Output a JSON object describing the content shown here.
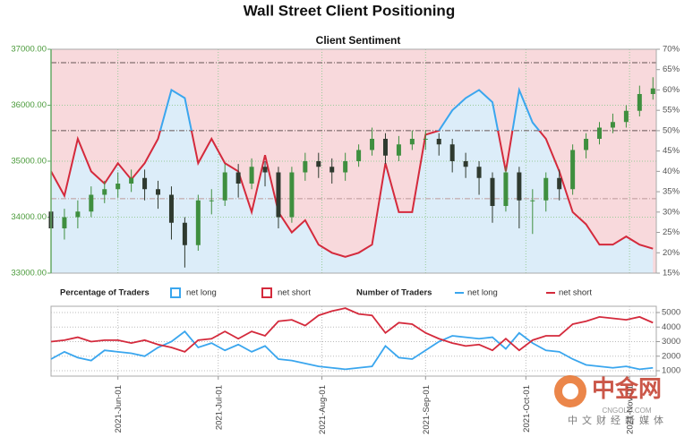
{
  "chart_data": [
    {
      "type": "candlestick",
      "title": "Wall Street Client Positioning",
      "subtitle": "Client Sentiment",
      "x": [
        "2021-May-12",
        "2021-May-16",
        "2021-May-20",
        "2021-May-24",
        "2021-May-28",
        "2021-Jun-01",
        "2021-Jun-05",
        "2021-Jun-09",
        "2021-Jun-13",
        "2021-Jun-17",
        "2021-Jun-21",
        "2021-Jun-25",
        "2021-Jun-29",
        "2021-Jul-03",
        "2021-Jul-07",
        "2021-Jul-11",
        "2021-Jul-15",
        "2021-Jul-19",
        "2021-Jul-23",
        "2021-Jul-27",
        "2021-Jul-31",
        "2021-Aug-04",
        "2021-Aug-08",
        "2021-Aug-12",
        "2021-Aug-16",
        "2021-Aug-20",
        "2021-Aug-24",
        "2021-Aug-28",
        "2021-Sep-01",
        "2021-Sep-05",
        "2021-Sep-09",
        "2021-Sep-13",
        "2021-Sep-17",
        "2021-Sep-21",
        "2021-Sep-25",
        "2021-Sep-29",
        "2021-Oct-03",
        "2021-Oct-07",
        "2021-Oct-11",
        "2021-Oct-15",
        "2021-Oct-19",
        "2021-Oct-23",
        "2021-Oct-27",
        "2021-Oct-31",
        "2021-Nov-04",
        "2021-Nov-08"
      ],
      "xlim": [
        "2021-May-12",
        "2021-Nov-09"
      ],
      "open": [
        34100,
        33800,
        34000,
        34100,
        34400,
        34500,
        34600,
        34700,
        34500,
        34400,
        33900,
        33500,
        34300,
        34300,
        34800,
        34600,
        34900,
        34800,
        34000,
        34800,
        35000,
        34900,
        34800,
        35000,
        35200,
        35400,
        35100,
        35300,
        35400,
        35400,
        35300,
        35000,
        34900,
        34700,
        34200,
        34800,
        34300,
        34300,
        34700,
        34500,
        35200,
        35400,
        35600,
        35700,
        35900,
        36200
      ],
      "high": [
        34250,
        34150,
        34300,
        34550,
        34650,
        34800,
        34850,
        34850,
        34650,
        34550,
        34000,
        34400,
        34500,
        34950,
        34950,
        35050,
        35000,
        34900,
        34900,
        35150,
        35150,
        35050,
        35150,
        35300,
        35600,
        35500,
        35450,
        35550,
        35550,
        35500,
        35400,
        35150,
        35000,
        34800,
        34900,
        34900,
        34500,
        34800,
        34850,
        35300,
        35500,
        35700,
        35850,
        36000,
        36350,
        36500
      ],
      "low": [
        33300,
        33600,
        33800,
        34000,
        34250,
        34350,
        34450,
        34300,
        34150,
        33600,
        33100,
        33400,
        34050,
        34200,
        34350,
        34500,
        34550,
        33800,
        33900,
        34650,
        34700,
        34600,
        34650,
        34900,
        35100,
        34950,
        35000,
        35200,
        35200,
        35100,
        34800,
        34700,
        34400,
        33900,
        34100,
        33800,
        33700,
        34100,
        34300,
        34400,
        35050,
        35300,
        35500,
        35600,
        35800,
        36100
      ],
      "close": [
        33800,
        34000,
        34100,
        34400,
        34500,
        34600,
        34700,
        34500,
        34400,
        33900,
        33500,
        34300,
        34300,
        34800,
        34600,
        34900,
        34800,
        34000,
        34800,
        35000,
        34900,
        34800,
        35000,
        35200,
        35400,
        35100,
        35300,
        35400,
        35400,
        35300,
        35000,
        34900,
        34700,
        34200,
        34800,
        34300,
        34300,
        34700,
        34500,
        35200,
        35400,
        35600,
        35700,
        35900,
        36200,
        36300
      ],
      "up_color": "#3f8f3f",
      "down_color": "#2f3a2f",
      "ylim": [
        33000,
        37000
      ],
      "yticks": [
        {
          "value": 33000,
          "label": "33000.00"
        },
        {
          "value": 34000,
          "label": "34000.00"
        },
        {
          "value": 35000,
          "label": "35000.00"
        },
        {
          "value": 36000,
          "label": "36000.00"
        },
        {
          "value": 37000,
          "label": "37000.00"
        }
      ],
      "y2lim": [
        15,
        70
      ],
      "y2ticks": [
        {
          "value": 15,
          "label": "15%"
        },
        {
          "value": 20,
          "label": "20%"
        },
        {
          "value": 25,
          "label": "25%"
        },
        {
          "value": 30,
          "label": "30%"
        },
        {
          "value": 35,
          "label": "35%"
        },
        {
          "value": 40,
          "label": "40%"
        },
        {
          "value": 45,
          "label": "45%"
        },
        {
          "value": 50,
          "label": "50%"
        },
        {
          "value": 55,
          "label": "55%"
        },
        {
          "value": 60,
          "label": "60%"
        },
        {
          "value": 65,
          "label": "65%"
        },
        {
          "value": 70,
          "label": "70%"
        }
      ],
      "reference_lines": [
        33.3,
        50,
        66.7
      ],
      "series": [
        {
          "name": "net long",
          "axis": "y2",
          "color": "#3aa6ee",
          "color_below": "#d42a3c",
          "color_threshold": 50,
          "fill_below": "#dcedf9",
          "fill_above": "#f8d9dc",
          "values": [
            40,
            34,
            48,
            40,
            37,
            42,
            38,
            42,
            48,
            60,
            58,
            42,
            48,
            42,
            40,
            30,
            44,
            30,
            25,
            28,
            22,
            20,
            19,
            20,
            22,
            42,
            30,
            30,
            49,
            50,
            55,
            58,
            60,
            57,
            40,
            60,
            52,
            48,
            40,
            30,
            27,
            22,
            22,
            24,
            22,
            21
          ]
        }
      ],
      "legend": {
        "title": "Percentage of Traders",
        "entries": [
          {
            "name": "net long",
            "color": "#3aa6ee"
          },
          {
            "name": "net short",
            "color": "#d42a3c"
          }
        ]
      }
    },
    {
      "type": "line",
      "x": [
        "2021-May-12",
        "2021-May-16",
        "2021-May-20",
        "2021-May-24",
        "2021-May-28",
        "2021-Jun-01",
        "2021-Jun-05",
        "2021-Jun-09",
        "2021-Jun-13",
        "2021-Jun-17",
        "2021-Jun-21",
        "2021-Jun-25",
        "2021-Jun-29",
        "2021-Jul-03",
        "2021-Jul-07",
        "2021-Jul-11",
        "2021-Jul-15",
        "2021-Jul-19",
        "2021-Jul-23",
        "2021-Jul-27",
        "2021-Jul-31",
        "2021-Aug-04",
        "2021-Aug-08",
        "2021-Aug-12",
        "2021-Aug-16",
        "2021-Aug-20",
        "2021-Aug-24",
        "2021-Aug-28",
        "2021-Sep-01",
        "2021-Sep-05",
        "2021-Sep-09",
        "2021-Sep-13",
        "2021-Sep-17",
        "2021-Sep-21",
        "2021-Sep-25",
        "2021-Sep-29",
        "2021-Oct-03",
        "2021-Oct-07",
        "2021-Oct-11",
        "2021-Oct-15",
        "2021-Oct-19",
        "2021-Oct-23",
        "2021-Oct-27",
        "2021-Oct-31",
        "2021-Nov-04",
        "2021-Nov-08"
      ],
      "xlim": [
        "2021-May-12",
        "2021-Nov-09"
      ],
      "xticks": [
        "2021-Jun-01",
        "2021-Jul-01",
        "2021-Aug-01",
        "2021-Sep-01",
        "2021-Oct-01",
        "2021-Nov-01"
      ],
      "ylim": [
        630,
        5430
      ],
      "yticks": [
        1000,
        2000,
        3000,
        4000,
        5000
      ],
      "series": [
        {
          "name": "net long",
          "color": "#3aa6ee",
          "values": [
            1800,
            2300,
            1900,
            1700,
            2400,
            2300,
            2200,
            2000,
            2600,
            3000,
            3700,
            2600,
            2900,
            2400,
            2800,
            2300,
            2700,
            1800,
            1700,
            1500,
            1300,
            1200,
            1100,
            1200,
            1300,
            2700,
            1900,
            1800,
            2400,
            3000,
            3400,
            3300,
            3200,
            3300,
            2500,
            3600,
            2900,
            2400,
            2300,
            1800,
            1400,
            1300,
            1200,
            1300,
            1100,
            1200
          ]
        },
        {
          "name": "net short",
          "color": "#d42a3c",
          "values": [
            3000,
            3100,
            3300,
            3000,
            3100,
            3100,
            2900,
            3100,
            2800,
            2600,
            2300,
            3100,
            3200,
            3700,
            3200,
            3700,
            3400,
            4400,
            4500,
            4100,
            4800,
            5100,
            5300,
            4900,
            4800,
            3600,
            4300,
            4200,
            3600,
            3200,
            2900,
            2700,
            2800,
            2400,
            3200,
            2400,
            3100,
            3400,
            3400,
            4200,
            4400,
            4700,
            4600,
            4500,
            4700,
            4300
          ]
        }
      ],
      "legend": {
        "title": "Number of Traders"
      }
    }
  ],
  "watermark": {
    "name": "中金网",
    "site": "CNGOLD.COM",
    "tagline": "中文财经新媒体"
  }
}
